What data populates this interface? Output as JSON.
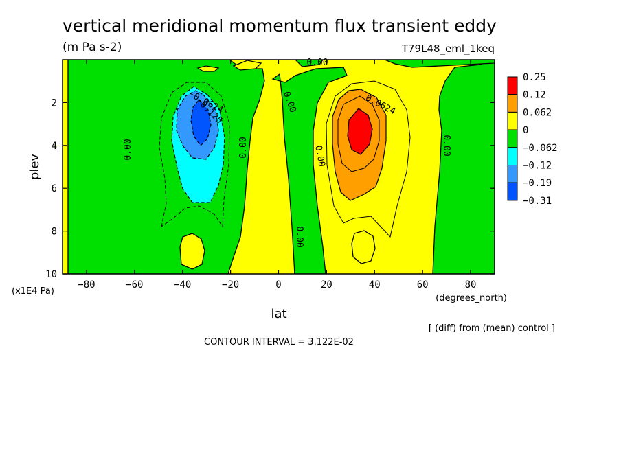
{
  "chart_data": {
    "type": "heatmap",
    "title": "vertical meridional momentum flux transient eddy",
    "units": "(m Pa s-2)",
    "run_label": "T79L48_eml_1keq",
    "xlabel": "lat",
    "x_units": "(degrees_north)",
    "ylabel": "plev",
    "y_units": "(x1E4 Pa)",
    "xlim": [
      -90,
      90
    ],
    "ylim": [
      10,
      0
    ],
    "x_ticks": [
      -80,
      -60,
      -40,
      -20,
      0,
      20,
      40,
      60,
      80
    ],
    "y_ticks": [
      2,
      4,
      6,
      8,
      10
    ],
    "diff_note": "[ (diff) from (mean) control ]",
    "contour_interval": "CONTOUR INTERVAL = 3.122E-02",
    "colorbar": {
      "labels": [
        "0.25",
        "0.12",
        "0.062",
        "0",
        "−0.062",
        "−0.12",
        "−0.19",
        "−0.31"
      ],
      "colors": [
        "#ff0000",
        "#ff9f00",
        "#ffff00",
        "#00e000",
        "#00ffff",
        "#3399ff",
        "#0055ff"
      ]
    },
    "contour_labels": [
      {
        "text": "0.00",
        "lat": 22,
        "plev": 0.1
      },
      {
        "text": "0.00",
        "lat": -68,
        "plev": 4.2
      },
      {
        "text": "0.00",
        "lat": -17,
        "plev": 4.0
      },
      {
        "text": "0.00",
        "lat": 3,
        "plev": 2.3
      },
      {
        "text": "0.00",
        "lat": 14,
        "plev": 4.6
      },
      {
        "text": "0.00",
        "lat": 7,
        "plev": 8.3
      },
      {
        "text": "0.00",
        "lat": 67,
        "plev": 4.0
      },
      {
        "text": "−0.0624",
        "lat": -34,
        "plev": 2.0
      },
      {
        "text": "−0.125",
        "lat": -30,
        "plev": 2.6
      },
      {
        "text": "0.0624",
        "lat": 44,
        "plev": 2.4
      }
    ],
    "features": [
      {
        "sign": "negative",
        "center_lat": -32,
        "center_plev": 3.2,
        "max_magnitude": 0.25
      },
      {
        "sign": "positive",
        "center_lat": 34,
        "center_plev": 3.2,
        "max_magnitude": 0.19
      }
    ]
  }
}
